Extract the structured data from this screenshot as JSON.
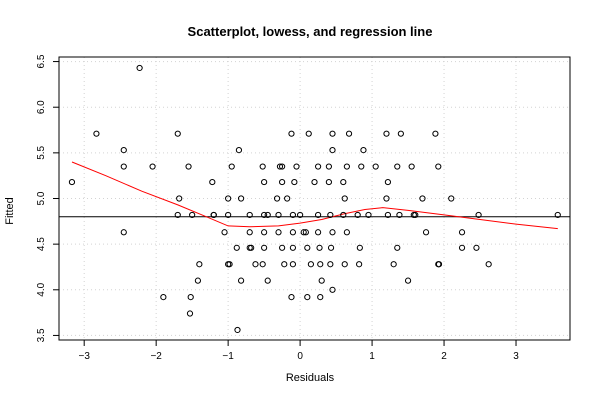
{
  "chart_data": {
    "type": "scatter",
    "title": "Scatterplot, lowess, and regression line",
    "xlabel": "Residuals",
    "ylabel": "Fitted",
    "xlim": [
      -3.35,
      3.75
    ],
    "ylim": [
      3.45,
      6.55
    ],
    "x_ticks": [
      -3,
      -2,
      -1,
      0,
      1,
      2,
      3
    ],
    "y_ticks": [
      3.5,
      4.0,
      4.5,
      5.0,
      5.5,
      6.0,
      6.5
    ],
    "x_tick_labels": [
      "−3",
      "−2",
      "−1",
      "0",
      "1",
      "2",
      "3"
    ],
    "y_tick_labels": [
      "3.5",
      "4.0",
      "4.5",
      "5.0",
      "5.5",
      "6.0",
      "6.5"
    ],
    "grid": true,
    "colors": {
      "points": "#000000",
      "lowess": "#ff0000",
      "regression": "#000000",
      "grid": "#d3d3d3"
    },
    "regression_y": 4.8,
    "series": [
      {
        "points": [
          [
            -3.17,
            5.18
          ],
          [
            -2.83,
            5.71
          ],
          [
            -2.45,
            5.53
          ],
          [
            -2.45,
            5.35
          ],
          [
            -2.45,
            4.63
          ],
          [
            -2.23,
            6.43
          ],
          [
            -2.05,
            5.35
          ],
          [
            -1.9,
            3.92
          ],
          [
            -1.7,
            5.71
          ],
          [
            -1.68,
            5.0
          ],
          [
            -1.7,
            4.82
          ],
          [
            -1.55,
            5.35
          ],
          [
            -1.52,
            3.92
          ],
          [
            -1.53,
            3.74
          ],
          [
            -1.5,
            4.82
          ],
          [
            -1.4,
            4.28
          ],
          [
            -1.42,
            4.1
          ],
          [
            -1.22,
            5.18
          ],
          [
            -1.2,
            4.82
          ],
          [
            -1.2,
            4.82
          ],
          [
            -1.05,
            4.63
          ],
          [
            -1.0,
            5.0
          ],
          [
            -1.0,
            4.82
          ],
          [
            -0.98,
            4.28
          ],
          [
            -1.0,
            4.28
          ],
          [
            -0.95,
            5.35
          ],
          [
            -0.88,
            4.46
          ],
          [
            -0.85,
            5.53
          ],
          [
            -0.82,
            5.0
          ],
          [
            -0.82,
            4.1
          ],
          [
            -0.87,
            3.56
          ],
          [
            -0.7,
            4.82
          ],
          [
            -0.7,
            4.63
          ],
          [
            -0.7,
            4.46
          ],
          [
            -0.68,
            4.46
          ],
          [
            -0.62,
            4.28
          ],
          [
            -0.52,
            5.35
          ],
          [
            -0.5,
            5.18
          ],
          [
            -0.5,
            4.82
          ],
          [
            -0.45,
            4.82
          ],
          [
            -0.5,
            4.63
          ],
          [
            -0.5,
            4.46
          ],
          [
            -0.52,
            4.28
          ],
          [
            -0.45,
            4.1
          ],
          [
            -0.32,
            5.0
          ],
          [
            -0.3,
            4.82
          ],
          [
            -0.3,
            4.63
          ],
          [
            -0.28,
            5.35
          ],
          [
            -0.25,
            5.18
          ],
          [
            -0.25,
            5.35
          ],
          [
            -0.25,
            4.46
          ],
          [
            -0.22,
            4.28
          ],
          [
            -0.18,
            5.0
          ],
          [
            -0.12,
            5.71
          ],
          [
            -0.08,
            5.18
          ],
          [
            -0.05,
            5.35
          ],
          [
            -0.1,
            4.82
          ],
          [
            -0.1,
            4.63
          ],
          [
            -0.1,
            4.46
          ],
          [
            -0.1,
            4.28
          ],
          [
            -0.12,
            3.92
          ],
          [
            0.0,
            4.82
          ],
          [
            0.05,
            4.63
          ],
          [
            0.08,
            4.63
          ],
          [
            0.1,
            4.46
          ],
          [
            0.12,
            5.71
          ],
          [
            0.15,
            4.28
          ],
          [
            0.1,
            3.92
          ],
          [
            0.2,
            5.18
          ],
          [
            0.25,
            5.35
          ],
          [
            0.25,
            4.82
          ],
          [
            0.25,
            4.63
          ],
          [
            0.27,
            4.46
          ],
          [
            0.28,
            4.28
          ],
          [
            0.3,
            4.1
          ],
          [
            0.28,
            3.92
          ],
          [
            0.4,
            5.35
          ],
          [
            0.4,
            5.18
          ],
          [
            0.45,
            5.71
          ],
          [
            0.45,
            5.53
          ],
          [
            0.42,
            4.82
          ],
          [
            0.45,
            4.63
          ],
          [
            0.43,
            4.46
          ],
          [
            0.42,
            4.28
          ],
          [
            0.45,
            4.0
          ],
          [
            0.6,
            5.18
          ],
          [
            0.62,
            5.0
          ],
          [
            0.68,
            5.71
          ],
          [
            0.65,
            5.35
          ],
          [
            0.6,
            4.82
          ],
          [
            0.65,
            4.63
          ],
          [
            0.62,
            4.28
          ],
          [
            0.8,
            4.82
          ],
          [
            0.83,
            4.46
          ],
          [
            0.82,
            4.28
          ],
          [
            0.85,
            5.35
          ],
          [
            0.88,
            5.53
          ],
          [
            0.95,
            4.82
          ],
          [
            1.05,
            5.35
          ],
          [
            1.2,
            5.71
          ],
          [
            1.2,
            5.0
          ],
          [
            1.22,
            5.18
          ],
          [
            1.22,
            4.82
          ],
          [
            1.3,
            4.28
          ],
          [
            1.35,
            4.46
          ],
          [
            1.35,
            5.35
          ],
          [
            1.4,
            5.71
          ],
          [
            1.38,
            4.82
          ],
          [
            1.5,
            4.1
          ],
          [
            1.55,
            5.35
          ],
          [
            1.6,
            4.82
          ],
          [
            1.58,
            4.82
          ],
          [
            1.7,
            5.0
          ],
          [
            1.75,
            4.63
          ],
          [
            1.88,
            5.71
          ],
          [
            1.92,
            5.35
          ],
          [
            1.93,
            4.28
          ],
          [
            1.92,
            4.28
          ],
          [
            2.1,
            5.0
          ],
          [
            2.25,
            4.63
          ],
          [
            2.25,
            4.46
          ],
          [
            2.45,
            4.46
          ],
          [
            2.48,
            4.82
          ],
          [
            2.62,
            4.28
          ],
          [
            3.58,
            4.82
          ]
        ]
      }
    ],
    "lowess": [
      [
        -3.17,
        5.4
      ],
      [
        -2.7,
        5.25
      ],
      [
        -2.2,
        5.08
      ],
      [
        -1.7,
        4.93
      ],
      [
        -1.3,
        4.8
      ],
      [
        -1.0,
        4.7
      ],
      [
        -0.7,
        4.69
      ],
      [
        -0.3,
        4.7
      ],
      [
        0.0,
        4.73
      ],
      [
        0.3,
        4.77
      ],
      [
        0.6,
        4.83
      ],
      [
        0.9,
        4.88
      ],
      [
        1.15,
        4.9
      ],
      [
        1.5,
        4.87
      ],
      [
        2.0,
        4.82
      ],
      [
        2.5,
        4.77
      ],
      [
        3.0,
        4.72
      ],
      [
        3.58,
        4.67
      ]
    ]
  }
}
